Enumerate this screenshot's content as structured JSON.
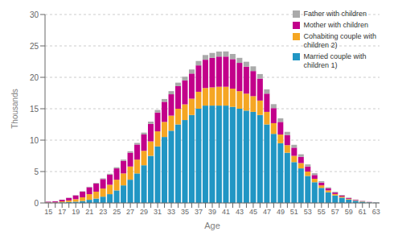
{
  "chart_data": {
    "type": "bar",
    "stacked": true,
    "xlabel": "Age",
    "ylabel": "Thousands",
    "categories": [
      "15",
      null,
      "17",
      null,
      "19",
      null,
      "21",
      null,
      "23",
      null,
      "25",
      null,
      "27",
      null,
      "29",
      null,
      "31",
      null,
      "33",
      null,
      "35",
      null,
      "37",
      null,
      "39",
      null,
      "41",
      null,
      "43",
      null,
      "45",
      null,
      "47",
      null,
      "49",
      null,
      "51",
      null,
      "53",
      null,
      "55",
      null,
      "57",
      null,
      "59",
      null,
      "61",
      null,
      "63"
    ],
    "series": [
      {
        "name": "Married couple with\nchildren 1)",
        "color": "#2196c4",
        "values": [
          0.05,
          0.05,
          0.1,
          0.15,
          0.2,
          0.3,
          0.5,
          0.7,
          1.0,
          1.4,
          2.0,
          2.8,
          3.7,
          4.7,
          6.0,
          7.5,
          9.0,
          10.5,
          11.5,
          12.5,
          13.2,
          14.0,
          15.0,
          15.5,
          15.5,
          15.5,
          15.5,
          15.3,
          15.0,
          14.7,
          14.5,
          14.0,
          12.5,
          11.0,
          9.5,
          8.0,
          6.5,
          5.5,
          4.3,
          3.3,
          2.4,
          1.7,
          1.2,
          0.85,
          0.55,
          0.35,
          0.2,
          0.1,
          0.05
        ]
      },
      {
        "name": "Cohabiting couple with\nchildren 2)",
        "color": "#f5a623",
        "values": [
          0.05,
          0.05,
          0.15,
          0.25,
          0.4,
          0.6,
          0.9,
          1.1,
          1.3,
          1.5,
          1.7,
          1.9,
          2.1,
          2.2,
          2.3,
          2.3,
          2.4,
          2.4,
          2.4,
          2.5,
          2.5,
          2.6,
          2.7,
          2.8,
          2.9,
          3.0,
          3.0,
          2.9,
          2.8,
          2.7,
          2.5,
          2.3,
          2.0,
          1.7,
          1.4,
          1.2,
          1.0,
          0.85,
          0.7,
          0.55,
          0.4,
          0.3,
          0.22,
          0.16,
          0.11,
          0.07,
          0.05,
          0.03,
          0.01
        ]
      },
      {
        "name": "Mother with children",
        "color": "#c2008a",
        "values": [
          0.1,
          0.15,
          0.25,
          0.4,
          0.6,
          0.9,
          1.1,
          1.3,
          1.5,
          1.6,
          1.8,
          2.0,
          2.2,
          2.4,
          2.6,
          2.8,
          3.0,
          3.2,
          3.4,
          3.6,
          3.8,
          4.0,
          4.2,
          4.5,
          4.7,
          4.8,
          4.8,
          4.7,
          4.5,
          4.3,
          4.0,
          3.5,
          2.9,
          2.4,
          2.0,
          1.6,
          1.3,
          1.0,
          0.8,
          0.6,
          0.45,
          0.32,
          0.23,
          0.17,
          0.12,
          0.08,
          0.05,
          0.03,
          0.01
        ]
      },
      {
        "name": "Father with children",
        "color": "#aaaaaa",
        "values": [
          0.02,
          0.02,
          0.03,
          0.04,
          0.05,
          0.06,
          0.08,
          0.1,
          0.12,
          0.15,
          0.18,
          0.2,
          0.23,
          0.26,
          0.3,
          0.35,
          0.4,
          0.45,
          0.5,
          0.55,
          0.6,
          0.65,
          0.7,
          0.75,
          0.78,
          0.8,
          0.82,
          0.82,
          0.8,
          0.78,
          0.75,
          0.72,
          0.68,
          0.63,
          0.58,
          0.52,
          0.46,
          0.4,
          0.34,
          0.28,
          0.22,
          0.17,
          0.13,
          0.1,
          0.07,
          0.05,
          0.04,
          0.02,
          0.01
        ]
      }
    ],
    "ylim": [
      0,
      30
    ],
    "yticks": [
      0,
      5,
      10,
      15,
      20,
      25,
      30
    ],
    "grid": true,
    "legend": "upper right"
  }
}
